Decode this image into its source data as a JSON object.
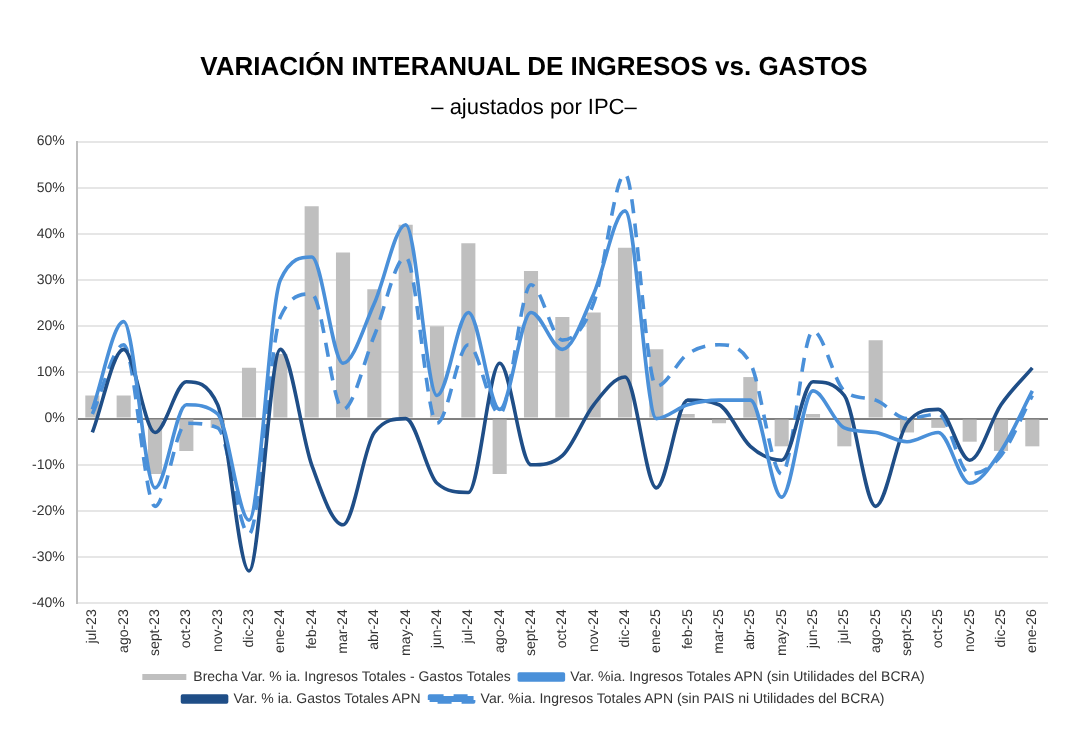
{
  "chart_data": {
    "type": "bar",
    "title": "VARIACIÓN INTERANUAL DE INGRESOS vs. GASTOS",
    "subtitle": "– ajustados por IPC–",
    "categories": [
      "jul-23",
      "ago-23",
      "sept-23",
      "oct-23",
      "nov-23",
      "dic-23",
      "ene-24",
      "feb-24",
      "mar-24",
      "abr-24",
      "may-24",
      "jun-24",
      "jul-24",
      "ago-24",
      "sept-24",
      "oct-24",
      "nov-24",
      "dic-24",
      "ene-25",
      "feb-25",
      "mar-25",
      "abr-25",
      "may-25",
      "jun-25",
      "jul-25",
      "ago-25",
      "sept-25",
      "oct-25",
      "nov-25",
      "dic-25",
      "ene-26"
    ],
    "series": [
      {
        "name": "Brecha Var. % ia. Ingresos Totales - Gastos Totales",
        "color": "#bfbfbf",
        "values": [
          5,
          5,
          -12,
          -7,
          -2,
          11,
          14,
          46,
          36,
          28,
          42,
          20,
          38,
          -12,
          32,
          22,
          23,
          37,
          15,
          1,
          -1,
          9,
          -6,
          1,
          -6,
          17,
          -3,
          -2,
          -5,
          -7,
          -6
        ]
      },
      {
        "name": "Var. %ia. Ingresos Totales APN (sin Utilidades del BCRA)",
        "type": "line",
        "color": "#4a90d9",
        "line_style": "solid",
        "values": [
          2,
          21,
          -15,
          3,
          1,
          -22,
          30,
          35,
          12,
          25,
          42,
          5,
          23,
          2,
          23,
          15,
          27,
          45,
          0,
          3,
          4,
          4,
          -17,
          6,
          -2,
          -3,
          -5,
          -3,
          -14,
          -7,
          6
        ]
      },
      {
        "name": "Var. % ia. Gastos Totales APN",
        "type": "line",
        "color": "#1f4e87",
        "line_style": "solid",
        "values": [
          -3,
          15,
          -3,
          8,
          3,
          -33,
          15,
          -10,
          -23,
          -3,
          0,
          -14,
          -16,
          12,
          -10,
          -8,
          3,
          9,
          -15,
          4,
          3,
          -6,
          -9,
          8,
          5,
          -19,
          -1,
          2,
          -9,
          3,
          11
        ]
      },
      {
        "name": "Var. %ia. Ingresos Totales APN (sin PAIS ni Utilidades del BCRA)",
        "type": "line",
        "color": "#4a90d9",
        "line_style": "dashed",
        "values": [
          1,
          16,
          -19,
          -1,
          -2,
          -25,
          22,
          27,
          2,
          18,
          35,
          -1,
          16,
          1,
          29,
          17,
          25,
          53,
          7,
          14,
          16,
          12,
          -12,
          19,
          6,
          4,
          0,
          1,
          -12,
          -8,
          5
        ]
      }
    ],
    "ylim": [
      -40,
      60
    ],
    "yticks": [
      {
        "value": -40,
        "label": "-40%"
      },
      {
        "value": -30,
        "label": "-30%"
      },
      {
        "value": -20,
        "label": "-20%"
      },
      {
        "value": -10,
        "label": "-10%"
      },
      {
        "value": 0,
        "label": "0%"
      },
      {
        "value": 10,
        "label": "10%"
      },
      {
        "value": 20,
        "label": "20%"
      },
      {
        "value": 30,
        "label": "30%"
      },
      {
        "value": 40,
        "label": "40%"
      },
      {
        "value": 50,
        "label": "50%"
      },
      {
        "value": 60,
        "label": "60%"
      }
    ],
    "grid": "y",
    "legend": "bottom",
    "marker": "none"
  }
}
